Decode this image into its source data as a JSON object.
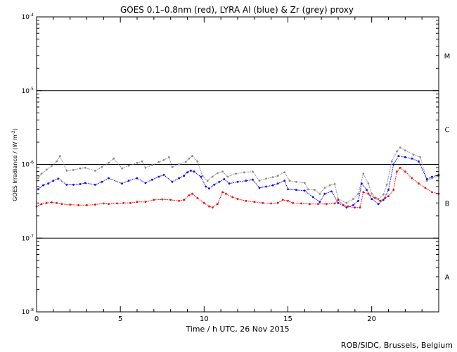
{
  "chart_data": {
    "type": "scatter",
    "title": "GOES 0.1–0.8nm (red), LYRA Al (blue) & Zr (grey) proxy",
    "xlabel": "Time / h UTC, 26 Nov 2015",
    "ylabel_main": "GOES Irradiance / (W m",
    "ylabel_sup": "-2",
    "ylabel_end": ")",
    "xlim": [
      0,
      24
    ],
    "ylim": [
      1e-08,
      0.0001
    ],
    "yscale": "log",
    "x_ticks": [
      {
        "value": 0,
        "label": "0"
      },
      {
        "value": 5,
        "label": "5"
      },
      {
        "value": 10,
        "label": "10"
      },
      {
        "value": 15,
        "label": "15"
      },
      {
        "value": 20,
        "label": "20"
      }
    ],
    "y_ticks": [
      {
        "exp": -8,
        "base": "10",
        "sup": "-8"
      },
      {
        "exp": -7,
        "base": "10",
        "sup": "-7"
      },
      {
        "exp": -6,
        "base": "10",
        "sup": "-6"
      },
      {
        "exp": -5,
        "base": "10",
        "sup": "-5"
      },
      {
        "exp": -4,
        "base": "10",
        "sup": "-4"
      }
    ],
    "class_lines": [
      1e-07,
      1e-06,
      1e-05
    ],
    "class_labels": [
      {
        "label": "A",
        "value": 3e-08
      },
      {
        "label": "B",
        "value": 3e-07
      },
      {
        "label": "C",
        "value": 3e-06
      },
      {
        "label": "M",
        "value": 3e-05
      }
    ],
    "series": [
      {
        "name": "GOES 0.1–0.8nm",
        "color": "#ff0000",
        "points": [
          [
            0,
            2.7e-07
          ],
          [
            0.3,
            2.9e-07
          ],
          [
            0.6,
            3e-07
          ],
          [
            0.9,
            3.05e-07
          ],
          [
            1.2,
            3e-07
          ],
          [
            1.5,
            2.9e-07
          ],
          [
            2.0,
            2.85e-07
          ],
          [
            2.5,
            2.8e-07
          ],
          [
            3.0,
            2.8e-07
          ],
          [
            3.5,
            2.85e-07
          ],
          [
            4.0,
            2.95e-07
          ],
          [
            4.3,
            2.9e-07
          ],
          [
            4.8,
            2.95e-07
          ],
          [
            5.2,
            3e-07
          ],
          [
            5.6,
            3e-07
          ],
          [
            6.0,
            3.1e-07
          ],
          [
            6.5,
            3.1e-07
          ],
          [
            7.0,
            3.3e-07
          ],
          [
            7.5,
            3.35e-07
          ],
          [
            8.0,
            3.3e-07
          ],
          [
            8.5,
            3.2e-07
          ],
          [
            8.8,
            3.3e-07
          ],
          [
            9.1,
            3.8e-07
          ],
          [
            9.3,
            4e-07
          ],
          [
            9.6,
            3.5e-07
          ],
          [
            10.0,
            3e-07
          ],
          [
            10.3,
            2.7e-07
          ],
          [
            10.5,
            2.6e-07
          ],
          [
            10.8,
            2.9e-07
          ],
          [
            11.1,
            4.2e-07
          ],
          [
            11.3,
            4e-07
          ],
          [
            11.7,
            3.6e-07
          ],
          [
            12.0,
            3.4e-07
          ],
          [
            12.5,
            3.2e-07
          ],
          [
            13.0,
            3.1e-07
          ],
          [
            13.5,
            3e-07
          ],
          [
            14.0,
            2.95e-07
          ],
          [
            14.4,
            3e-07
          ],
          [
            14.7,
            3.3e-07
          ],
          [
            15.0,
            3.2e-07
          ],
          [
            15.3,
            3e-07
          ],
          [
            15.8,
            2.95e-07
          ],
          [
            16.3,
            2.9e-07
          ],
          [
            16.8,
            2.9e-07
          ],
          [
            17.3,
            2.9e-07
          ],
          [
            17.8,
            2.95e-07
          ],
          [
            18.0,
            3.3e-07
          ],
          [
            18.3,
            2.8e-07
          ],
          [
            18.6,
            2.7e-07
          ],
          [
            19.0,
            2.6e-07
          ],
          [
            19.3,
            2.6e-07
          ],
          [
            19.5,
            4.2e-07
          ],
          [
            19.8,
            4e-07
          ],
          [
            20.2,
            3.5e-07
          ],
          [
            20.5,
            3.2e-07
          ],
          [
            20.8,
            3.5e-07
          ],
          [
            21.0,
            3.7e-07
          ],
          [
            21.3,
            4.5e-07
          ],
          [
            21.5,
            8e-07
          ],
          [
            21.7,
            9e-07
          ],
          [
            22.0,
            8e-07
          ],
          [
            22.4,
            6.5e-07
          ],
          [
            22.8,
            5.5e-07
          ],
          [
            23.2,
            4.8e-07
          ],
          [
            23.6,
            4.2e-07
          ],
          [
            24.0,
            4e-07
          ]
        ]
      },
      {
        "name": "LYRA Al",
        "color": "#0000ff",
        "points": [
          [
            0.1,
            4.6e-07
          ],
          [
            0.4,
            5.2e-07
          ],
          [
            0.7,
            5.5e-07
          ],
          [
            1.0,
            6e-07
          ],
          [
            1.3,
            6.4e-07
          ],
          [
            1.8,
            5.3e-07
          ],
          [
            2.2,
            5.3e-07
          ],
          [
            2.6,
            5.4e-07
          ],
          [
            2.9,
            5.6e-07
          ],
          [
            3.5,
            5.3e-07
          ],
          [
            3.9,
            5.8e-07
          ],
          [
            4.3,
            6.5e-07
          ],
          [
            5.1,
            5.5e-07
          ],
          [
            5.5,
            6e-07
          ],
          [
            6.0,
            6.5e-07
          ],
          [
            6.5,
            5.6e-07
          ],
          [
            6.9,
            6.2e-07
          ],
          [
            7.3,
            6.8e-07
          ],
          [
            7.6,
            7.2e-07
          ],
          [
            8.1,
            5.8e-07
          ],
          [
            8.5,
            6.5e-07
          ],
          [
            8.8,
            7e-07
          ],
          [
            9.0,
            7.8e-07
          ],
          [
            9.2,
            8.2e-07
          ],
          [
            9.4,
            8e-07
          ],
          [
            9.8,
            6.8e-07
          ],
          [
            10.1,
            5e-07
          ],
          [
            10.3,
            4.7e-07
          ],
          [
            10.6,
            5.3e-07
          ],
          [
            10.9,
            5.8e-07
          ],
          [
            11.2,
            6.3e-07
          ],
          [
            11.5,
            5.5e-07
          ],
          [
            12.0,
            5.8e-07
          ],
          [
            12.5,
            6e-07
          ],
          [
            12.9,
            6.2e-07
          ],
          [
            13.3,
            4.8e-07
          ],
          [
            13.7,
            5e-07
          ],
          [
            14.1,
            5.2e-07
          ],
          [
            14.4,
            5.5e-07
          ],
          [
            14.8,
            6e-07
          ],
          [
            15.0,
            4.6e-07
          ],
          [
            15.5,
            4.5e-07
          ],
          [
            16.0,
            4.4e-07
          ],
          [
            16.5,
            3.6e-07
          ],
          [
            16.9,
            3.1e-07
          ],
          [
            17.2,
            4e-07
          ],
          [
            17.6,
            4.3e-07
          ],
          [
            18.0,
            3e-07
          ],
          [
            18.5,
            2.6e-07
          ],
          [
            18.9,
            2.8e-07
          ],
          [
            19.2,
            3.2e-07
          ],
          [
            19.4,
            5.5e-07
          ],
          [
            19.7,
            4.5e-07
          ],
          [
            20.0,
            3.4e-07
          ],
          [
            20.4,
            2.9e-07
          ],
          [
            20.7,
            3.3e-07
          ],
          [
            21.0,
            4.5e-07
          ],
          [
            21.3,
            1e-06
          ],
          [
            21.6,
            1.3e-06
          ],
          [
            22.0,
            1.25e-06
          ],
          [
            22.4,
            1.2e-06
          ],
          [
            22.8,
            1.1e-06
          ],
          [
            23.3,
            6.3e-07
          ],
          [
            23.6,
            6.8e-07
          ],
          [
            24.0,
            7.2e-07
          ]
        ]
      },
      {
        "name": "LYRA Zr",
        "color": "#8c8c8c",
        "points": [
          [
            0.1,
            6.5e-07
          ],
          [
            0.3,
            7.5e-07
          ],
          [
            0.6,
            8.5e-07
          ],
          [
            0.9,
            9.5e-07
          ],
          [
            1.2,
            1.1e-06
          ],
          [
            1.4,
            1.3e-06
          ],
          [
            1.8,
            8.2e-07
          ],
          [
            2.2,
            8.4e-07
          ],
          [
            2.6,
            8.8e-07
          ],
          [
            2.9,
            9e-07
          ],
          [
            3.5,
            8.2e-07
          ],
          [
            3.9,
            9.2e-07
          ],
          [
            4.3,
            1.05e-06
          ],
          [
            4.6,
            1.2e-06
          ],
          [
            5.1,
            8.8e-07
          ],
          [
            5.5,
            9.6e-07
          ],
          [
            6.0,
            1.05e-06
          ],
          [
            6.3,
            1.1e-06
          ],
          [
            6.5,
            9e-07
          ],
          [
            6.9,
            9.8e-07
          ],
          [
            7.3,
            1.08e-06
          ],
          [
            7.6,
            1.15e-06
          ],
          [
            7.9,
            1.25e-06
          ],
          [
            8.1,
            9.2e-07
          ],
          [
            8.5,
            1e-06
          ],
          [
            8.9,
            1.08e-06
          ],
          [
            9.1,
            1.2e-06
          ],
          [
            9.3,
            1.3e-06
          ],
          [
            9.6,
            1.1e-06
          ],
          [
            9.9,
            7e-07
          ],
          [
            10.2,
            6e-07
          ],
          [
            10.5,
            6.8e-07
          ],
          [
            10.8,
            7.6e-07
          ],
          [
            11.1,
            8e-07
          ],
          [
            11.4,
            6.8e-07
          ],
          [
            11.9,
            7.5e-07
          ],
          [
            12.4,
            7.8e-07
          ],
          [
            12.9,
            8e-07
          ],
          [
            13.3,
            6e-07
          ],
          [
            13.7,
            6.4e-07
          ],
          [
            14.1,
            6.7e-07
          ],
          [
            14.4,
            7e-07
          ],
          [
            14.8,
            7.8e-07
          ],
          [
            15.1,
            6e-07
          ],
          [
            15.5,
            5.8e-07
          ],
          [
            16.0,
            5.6e-07
          ],
          [
            16.2,
            4.6e-07
          ],
          [
            16.6,
            4.5e-07
          ],
          [
            16.9,
            4e-07
          ],
          [
            17.2,
            4.8e-07
          ],
          [
            17.5,
            5.2e-07
          ],
          [
            17.8,
            5.4e-07
          ],
          [
            18.0,
            3.4e-07
          ],
          [
            18.5,
            3e-07
          ],
          [
            18.9,
            3.4e-07
          ],
          [
            19.2,
            4e-07
          ],
          [
            19.5,
            7.5e-07
          ],
          [
            19.8,
            5.5e-07
          ],
          [
            20.0,
            4e-07
          ],
          [
            20.4,
            3.4e-07
          ],
          [
            20.7,
            3.9e-07
          ],
          [
            20.9,
            5.3e-07
          ],
          [
            21.2,
            1.1e-06
          ],
          [
            21.5,
            1.5e-06
          ],
          [
            21.7,
            1.7e-06
          ],
          [
            22.0,
            1.55e-06
          ],
          [
            22.5,
            1.35e-06
          ],
          [
            22.9,
            1.25e-06
          ],
          [
            23.3,
            6e-07
          ],
          [
            23.6,
            6.5e-07
          ],
          [
            24.0,
            7e-07
          ]
        ]
      }
    ]
  },
  "footer": {
    "credit": "ROB/SIDC, Brussels, Belgium"
  }
}
